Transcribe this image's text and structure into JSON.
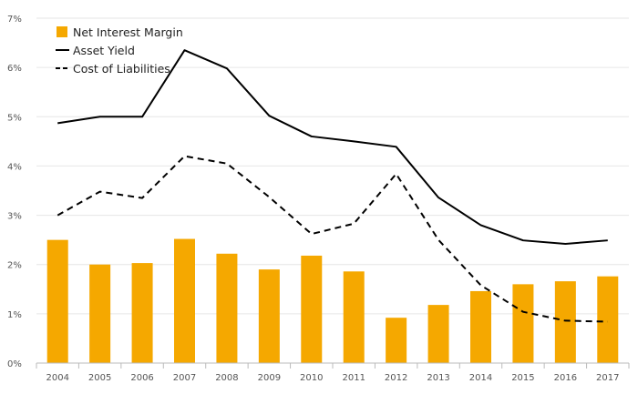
{
  "chart_data": {
    "type": "bar",
    "title": "",
    "xlabel": "",
    "ylabel": "",
    "categories": [
      "2004",
      "2005",
      "2006",
      "2007",
      "2008",
      "2009",
      "2010",
      "2011",
      "2012",
      "2013",
      "2014",
      "2015",
      "2016",
      "2017"
    ],
    "ylim": [
      0,
      7
    ],
    "yticks": [
      0,
      1,
      2,
      3,
      4,
      5,
      6,
      7
    ],
    "ytick_labels": [
      "0%",
      "1%",
      "2%",
      "3%",
      "4%",
      "5%",
      "6%",
      "7%"
    ],
    "grid": true,
    "legend_position": "top-left",
    "series": [
      {
        "name": "Net Interest Margin",
        "kind": "bar",
        "color": "#F5A800",
        "values": [
          2.5,
          2.0,
          2.03,
          2.52,
          2.22,
          1.9,
          2.18,
          1.86,
          0.92,
          1.18,
          1.46,
          1.6,
          1.66,
          1.76
        ]
      },
      {
        "name": "Asset Yield",
        "kind": "line",
        "style": "solid",
        "color": "#000000",
        "values": [
          4.87,
          5.0,
          5.0,
          6.35,
          5.98,
          5.02,
          4.6,
          4.5,
          4.39,
          3.36,
          2.8,
          2.49,
          2.42,
          2.49
        ]
      },
      {
        "name": "Cost of Liabilities",
        "kind": "line",
        "style": "dashed",
        "color": "#000000",
        "values": [
          3.0,
          3.48,
          3.35,
          4.2,
          4.05,
          3.37,
          2.62,
          2.83,
          3.84,
          2.5,
          1.58,
          1.04,
          0.86,
          0.84
        ]
      }
    ]
  }
}
